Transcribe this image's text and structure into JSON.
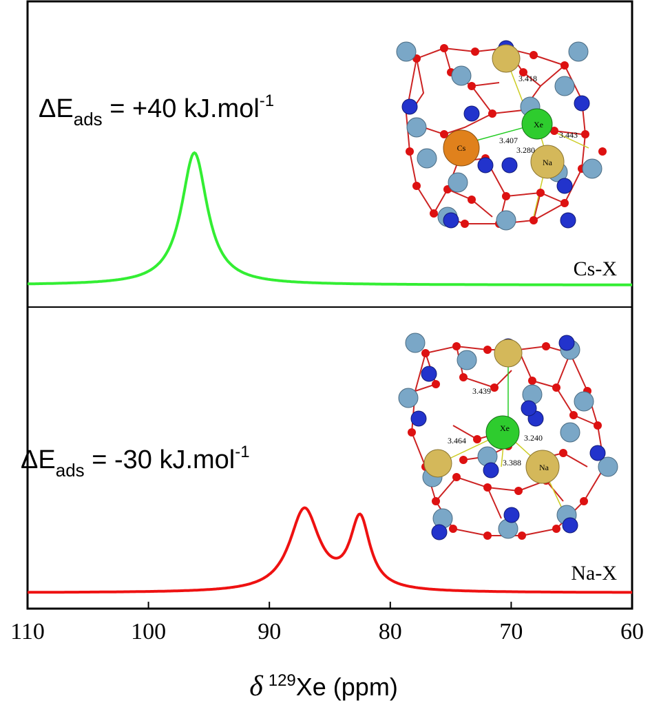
{
  "chart_data": {
    "type": "line",
    "xlabel_symbol": "δ",
    "xlabel_sup": "129",
    "xlabel_rest": "Xe (ppm)",
    "xlim": [
      110,
      60
    ],
    "xticks": [
      110,
      100,
      90,
      80,
      70,
      60
    ],
    "xtick_labels": [
      "110",
      "100",
      "90",
      "80",
      "70",
      "60"
    ],
    "series": [
      {
        "name": "Cs-X",
        "color": "#33ee33",
        "energy": {
          "prefix": "ΔE",
          "sub": "ads",
          "value": " = +40 kJ.mol",
          "sup": "-1"
        },
        "peaks": [
          {
            "center": 96.2,
            "width": 1.3,
            "height": 1.0
          }
        ]
      },
      {
        "name": "Na-X",
        "color": "#ee1111",
        "energy": {
          "prefix": "ΔE",
          "sub": "ads",
          "value": " = -30 kJ.mol",
          "sup": "-1"
        },
        "peaks": [
          {
            "center": 87.1,
            "width": 1.5,
            "height": 0.9
          },
          {
            "center": 82.5,
            "width": 1.0,
            "height": 0.78
          }
        ]
      }
    ],
    "insets": [
      {
        "name": "cs-x-structure",
        "distances": [
          "3.418",
          "3.407",
          "3.443",
          "3.280"
        ],
        "atoms": [
          "Cs",
          "Xe",
          "Na"
        ]
      },
      {
        "name": "na-x-structure",
        "distances": [
          "3.439",
          "3.464",
          "3.240",
          "3.388"
        ],
        "atoms": [
          "Xe",
          "Na"
        ]
      }
    ]
  }
}
